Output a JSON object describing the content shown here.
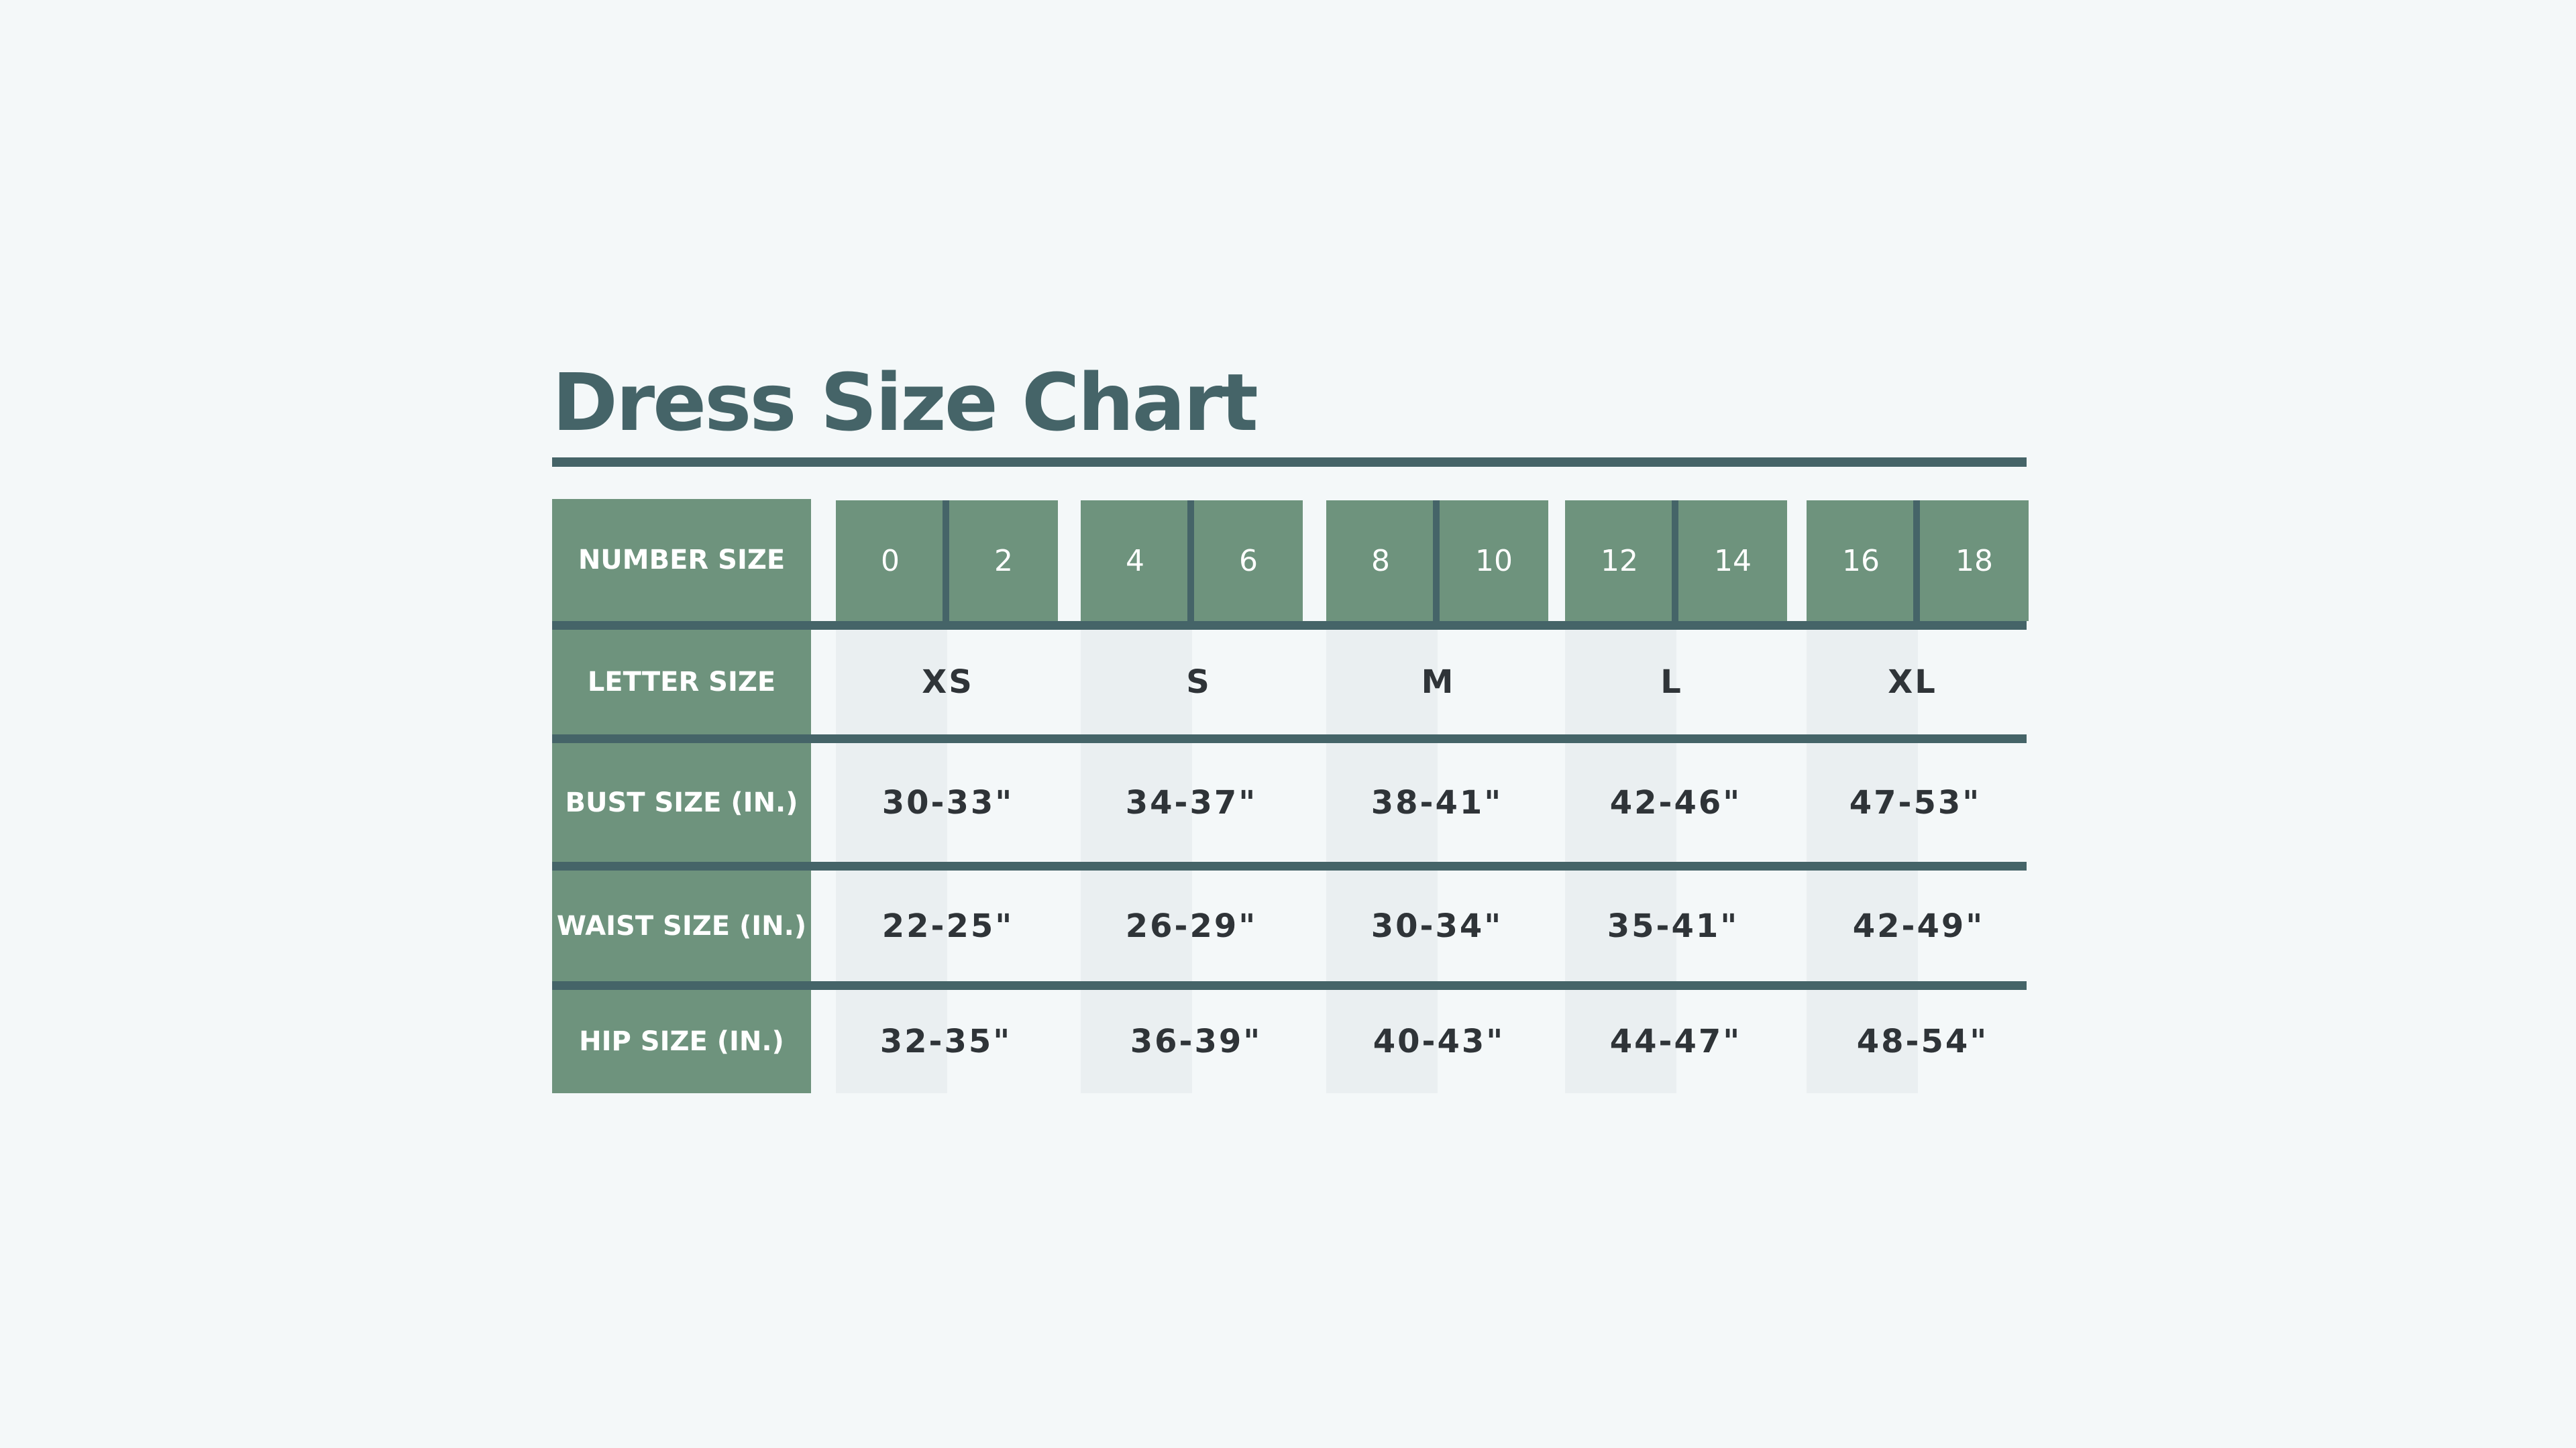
{
  "title": "Dress Size Chart",
  "colors": {
    "background": "#f4f8f9",
    "header_green": "#6e937d",
    "dark_teal": "#456468",
    "column_shade": "#eaeff1",
    "text_dark": "#2f3438"
  },
  "rows": {
    "number_size": "NUMBER SIZE",
    "letter_size": "LETTER SIZE",
    "bust_size": "BUST SIZE (IN.)",
    "waist_size": "WAIST SIZE (IN.)",
    "hip_size": "HIP SIZE (IN.)"
  },
  "number_sizes": [
    "0",
    "2",
    "4",
    "6",
    "8",
    "10",
    "12",
    "14",
    "16",
    "18"
  ],
  "columns": [
    {
      "letter": "XS",
      "bust": "30-33\"",
      "waist": "22-25\"",
      "hip": "32-35\""
    },
    {
      "letter": "S",
      "bust": "34-37\"",
      "waist": "26-29\"",
      "hip": "36-39\""
    },
    {
      "letter": "M",
      "bust": "38-41\"",
      "waist": "30-34\"",
      "hip": "40-43\""
    },
    {
      "letter": "L",
      "bust": "42-46\"",
      "waist": "35-41\"",
      "hip": "44-47\""
    },
    {
      "letter": "XL",
      "bust": "47-53\"",
      "waist": "42-49\"",
      "hip": "48-54\""
    }
  ]
}
